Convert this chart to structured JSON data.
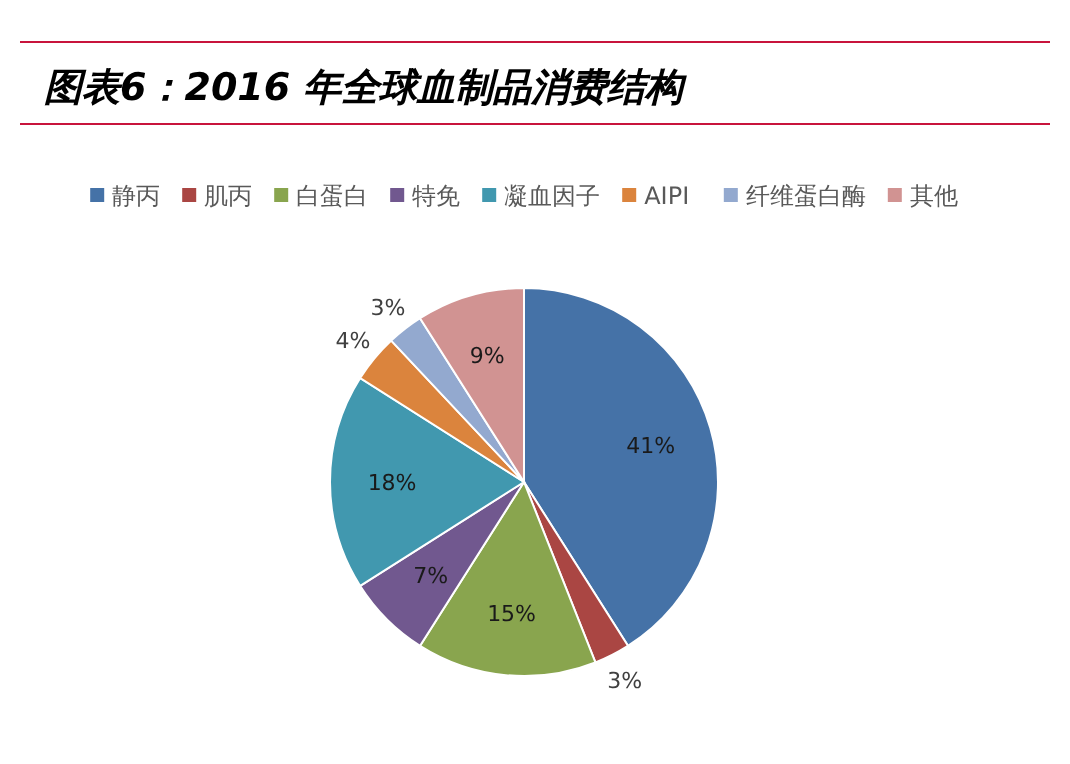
{
  "chart_data": {
    "type": "pie",
    "title": "图表6：2016 年全球血制品消费结构",
    "categories": [
      "静丙",
      "肌丙",
      "白蛋白",
      "特免",
      "凝血因子",
      "AIPI",
      "纤维蛋白酶",
      "其他"
    ],
    "values": [
      41,
      3,
      15,
      7,
      18,
      4,
      3,
      9
    ],
    "value_labels": [
      "41%",
      "3%",
      "15%",
      "7%",
      "18%",
      "4%",
      "3%",
      "9%"
    ],
    "colors": [
      "#4572a7",
      "#aa4643",
      "#89a54e",
      "#71588f",
      "#4198af",
      "#db843d",
      "#93a9cf",
      "#d19392"
    ],
    "legend": "top"
  }
}
